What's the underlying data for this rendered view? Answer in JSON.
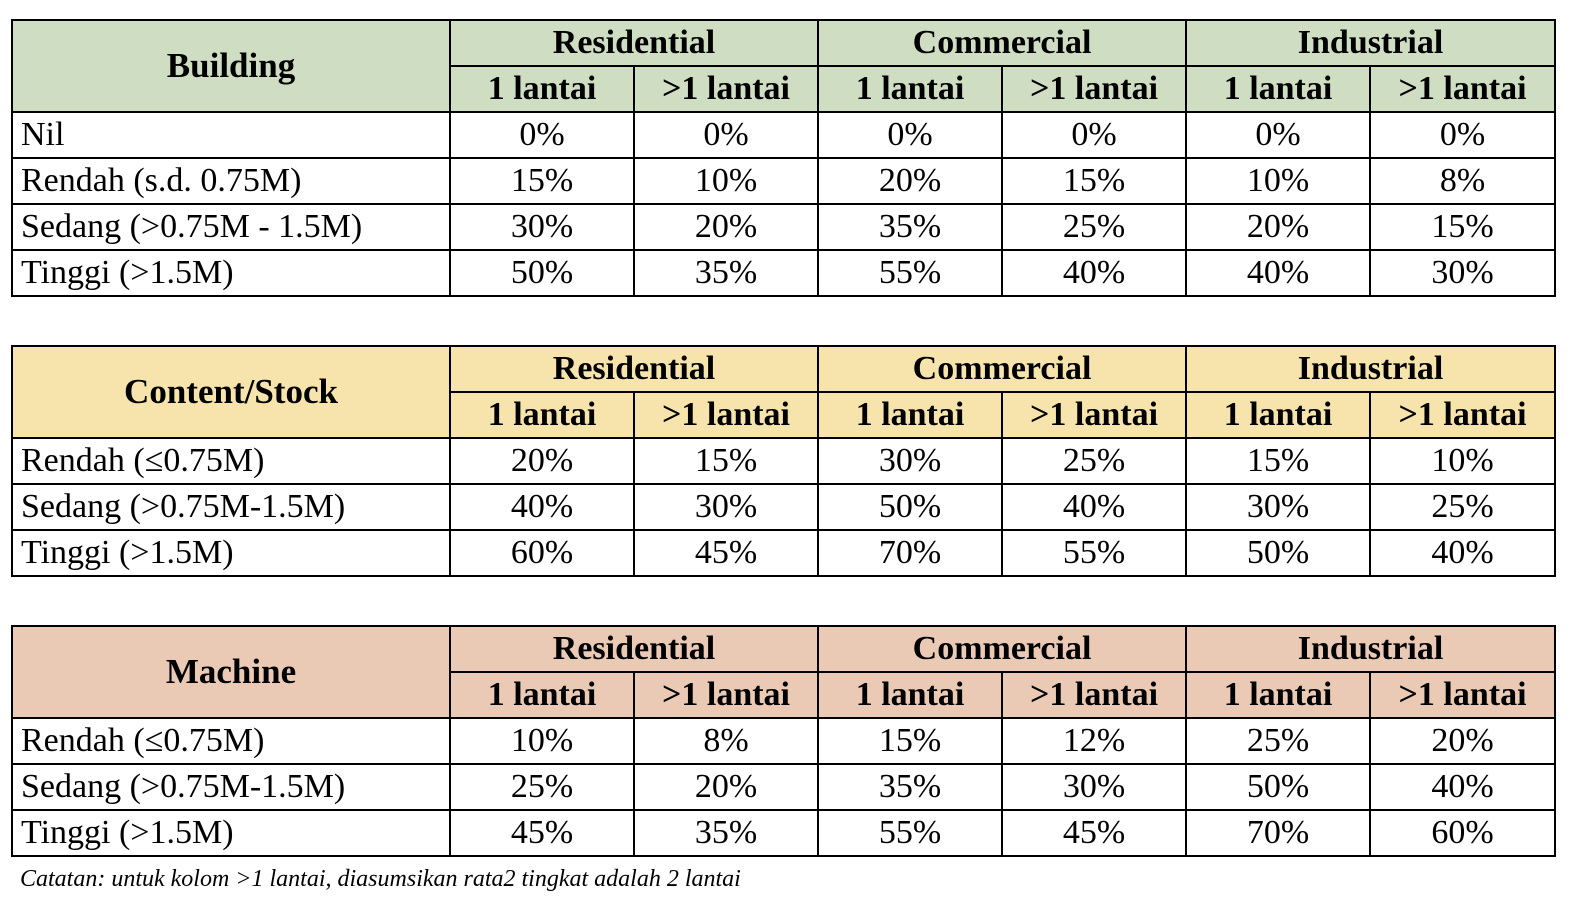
{
  "tables": [
    {
      "title": "Building",
      "groups": [
        "Residential",
        "Commercial",
        "Industrial"
      ],
      "subheaders": [
        "1 lantai",
        ">1 lantai",
        "1 lantai",
        ">1 lantai",
        "1 lantai",
        ">1 lantai"
      ],
      "rows": [
        {
          "label": "Nil",
          "values": [
            "0%",
            "0%",
            "0%",
            "0%",
            "0%",
            "0%"
          ]
        },
        {
          "label": "Rendah (s.d. 0.75M)",
          "values": [
            "15%",
            "10%",
            "20%",
            "15%",
            "10%",
            "8%"
          ]
        },
        {
          "label": "Sedang (>0.75M - 1.5M)",
          "values": [
            "30%",
            "20%",
            "35%",
            "25%",
            "20%",
            "15%"
          ]
        },
        {
          "label": "Tinggi (>1.5M)",
          "values": [
            "50%",
            "35%",
            "55%",
            "40%",
            "40%",
            "30%"
          ]
        }
      ],
      "header_color": "#cfddc3"
    },
    {
      "title": "Content/Stock",
      "groups": [
        "Residential",
        "Commercial",
        "Industrial"
      ],
      "subheaders": [
        "1 lantai",
        ">1 lantai",
        "1 lantai",
        ">1 lantai",
        "1 lantai",
        ">1 lantai"
      ],
      "rows": [
        {
          "label": "Rendah (≤0.75M)",
          "values": [
            "20%",
            "15%",
            "30%",
            "25%",
            "15%",
            "10%"
          ]
        },
        {
          "label": "Sedang (>0.75M-1.5M)",
          "values": [
            "40%",
            "30%",
            "50%",
            "40%",
            "30%",
            "25%"
          ]
        },
        {
          "label": "Tinggi (>1.5M)",
          "values": [
            "60%",
            "45%",
            "70%",
            "55%",
            "50%",
            "40%"
          ]
        }
      ],
      "header_color": "#f7e4ad"
    },
    {
      "title": "Machine",
      "groups": [
        "Residential",
        "Commercial",
        "Industrial"
      ],
      "subheaders": [
        "1 lantai",
        ">1 lantai",
        "1 lantai",
        ">1 lantai",
        "1 lantai",
        ">1 lantai"
      ],
      "rows": [
        {
          "label": "Rendah (≤0.75M)",
          "values": [
            "10%",
            "8%",
            "15%",
            "12%",
            "25%",
            "20%"
          ]
        },
        {
          "label": "Sedang (>0.75M-1.5M)",
          "values": [
            "25%",
            "20%",
            "35%",
            "30%",
            "50%",
            "40%"
          ]
        },
        {
          "label": "Tinggi (>1.5M)",
          "values": [
            "45%",
            "35%",
            "55%",
            "45%",
            "70%",
            "60%"
          ]
        }
      ],
      "header_color": "#eacab5"
    }
  ],
  "note": "Catatan: untuk kolom >1 lantai, diasumsikan rata2 tingkat adalah 2 lantai"
}
